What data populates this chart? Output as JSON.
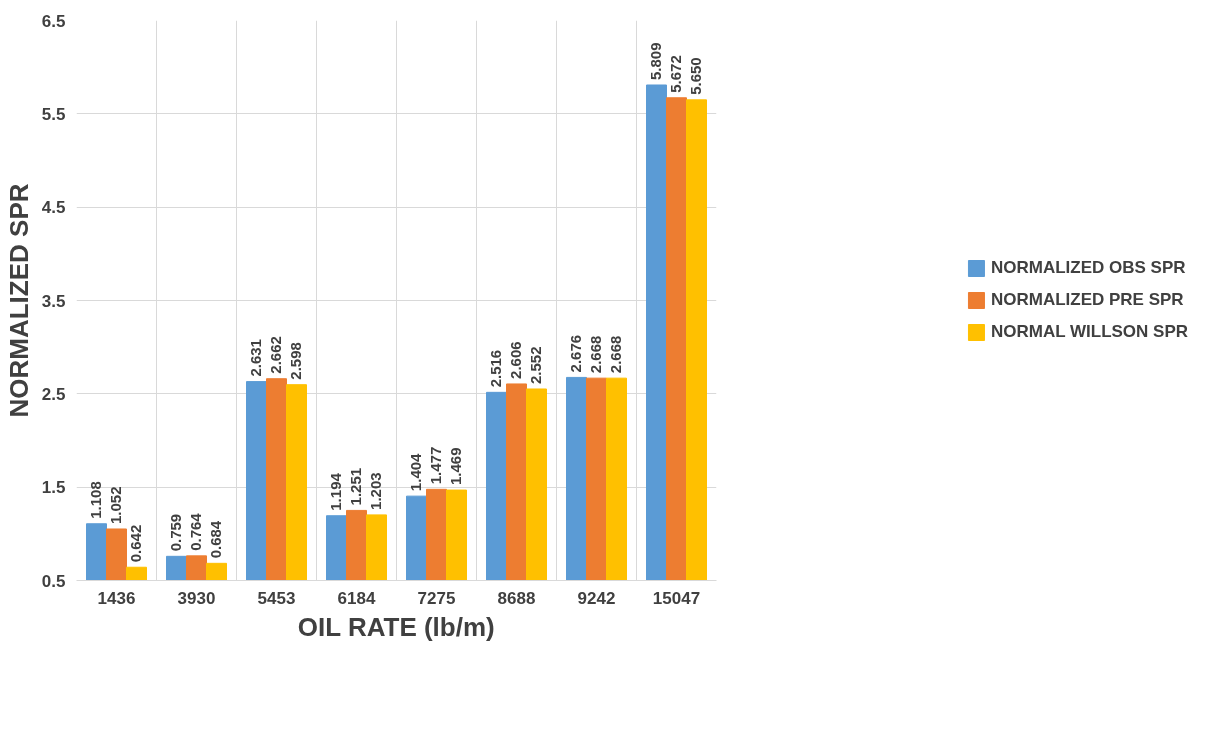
{
  "chart_data": {
    "type": "bar",
    "categories": [
      "1436",
      "3930",
      "5453",
      "6184",
      "7275",
      "8688",
      "9242",
      "15047"
    ],
    "xlabel": "OIL RATE (lb/m)",
    "ylabel": "NORMALIZED SPR",
    "ylim": [
      0.5,
      6.5
    ],
    "yticks": [
      0.5,
      1.5,
      2.5,
      3.5,
      4.5,
      5.5,
      6.5
    ],
    "grid": true,
    "legend": "right",
    "series": [
      {
        "name": "NORMALIZED OBS SPR",
        "color": "#5b9bd5",
        "values": [
          1.108,
          0.759,
          2.631,
          1.194,
          1.404,
          2.516,
          2.676,
          5.809
        ],
        "value_labels": [
          "1.108",
          "0.759",
          "2.631",
          "1.194",
          "1.404",
          "2.516",
          "2.676",
          "5.809"
        ]
      },
      {
        "name": "NORMALIZED PRE SPR",
        "color": "#ed7d31",
        "values": [
          1.052,
          0.764,
          2.662,
          1.251,
          1.477,
          2.606,
          2.668,
          5.672
        ],
        "value_labels": [
          "1.052",
          "0.764",
          "2.662",
          "1.251",
          "1.477",
          "2.606",
          "2.668",
          "5.672"
        ]
      },
      {
        "name": "NORMAL WILLSON SPR",
        "color": "#ffc000",
        "values": [
          0.642,
          0.684,
          2.598,
          1.203,
          1.469,
          2.552,
          2.668,
          5.65
        ],
        "value_labels": [
          "0.642",
          "0.684",
          "2.598",
          "1.203",
          "1.469",
          "2.552",
          "2.668",
          "5.650"
        ]
      }
    ]
  }
}
